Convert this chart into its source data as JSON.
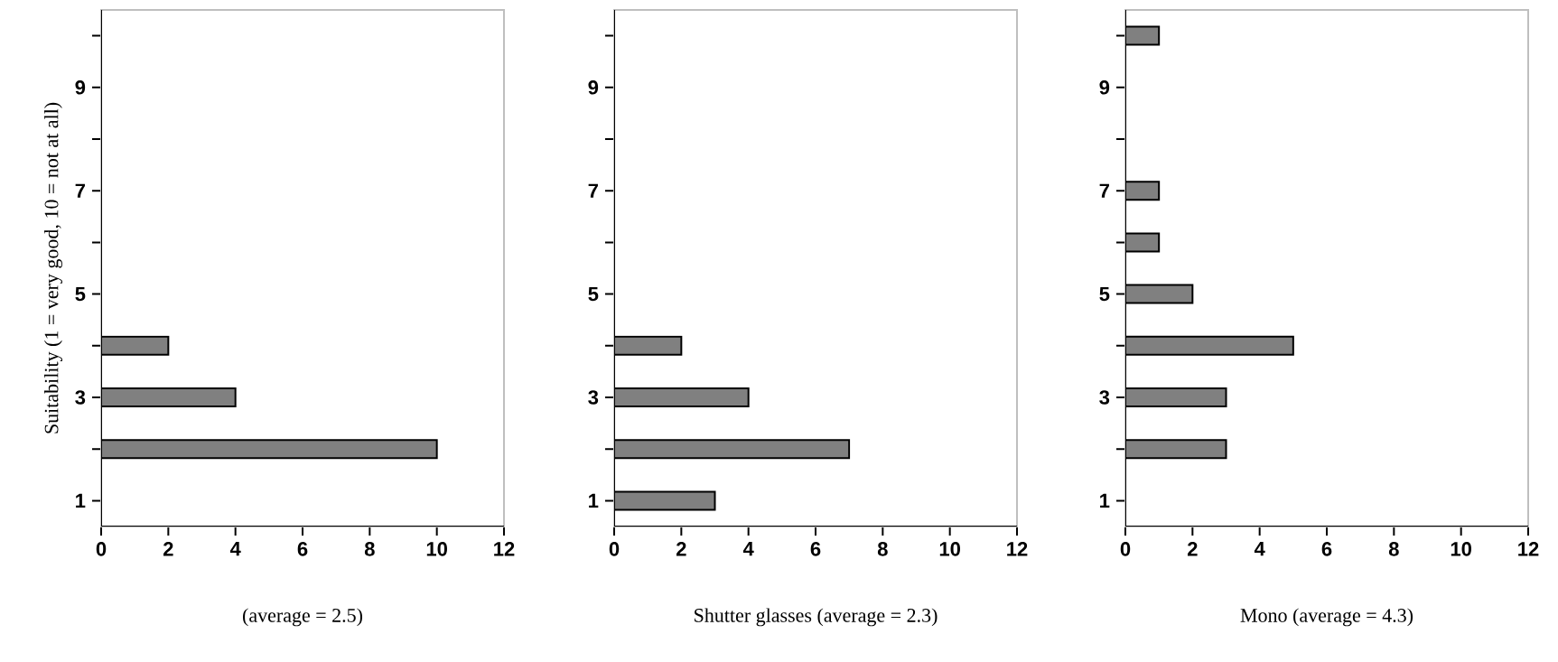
{
  "chart_data": [
    {
      "type": "bar",
      "orientation": "horizontal",
      "categories": [
        null,
        "9",
        null,
        "7",
        null,
        "5",
        null,
        "3",
        null,
        "1"
      ],
      "values": [
        null,
        null,
        null,
        null,
        null,
        null,
        2,
        4,
        10,
        null
      ],
      "color": "#808080",
      "xlim": [
        0,
        12
      ],
      "xticks": [
        0,
        2,
        4,
        6,
        8,
        10,
        12
      ],
      "xlabel": "(average = 2.5)",
      "ylabel": "Suitability (1 = very good, 10 = not at all)"
    },
    {
      "type": "bar",
      "orientation": "horizontal",
      "categories": [
        null,
        "9",
        null,
        "7",
        null,
        "5",
        null,
        "3",
        null,
        "1"
      ],
      "values": [
        null,
        null,
        null,
        null,
        null,
        null,
        2,
        4,
        7,
        3
      ],
      "color": "#808080",
      "xlim": [
        0,
        12
      ],
      "xticks": [
        0,
        2,
        4,
        6,
        8,
        10,
        12
      ],
      "xlabel": "Shutter glasses (average = 2.3)"
    },
    {
      "type": "bar",
      "orientation": "horizontal",
      "categories": [
        null,
        "9",
        null,
        "7",
        null,
        "5",
        null,
        "3",
        null,
        "1"
      ],
      "values": [
        1,
        null,
        null,
        1,
        1,
        2,
        5,
        3,
        3,
        null
      ],
      "color": "#808080",
      "xlim": [
        0,
        12
      ],
      "xticks": [
        0,
        2,
        4,
        6,
        8,
        10,
        12
      ],
      "xlabel": "Mono (average = 4.3)"
    }
  ]
}
